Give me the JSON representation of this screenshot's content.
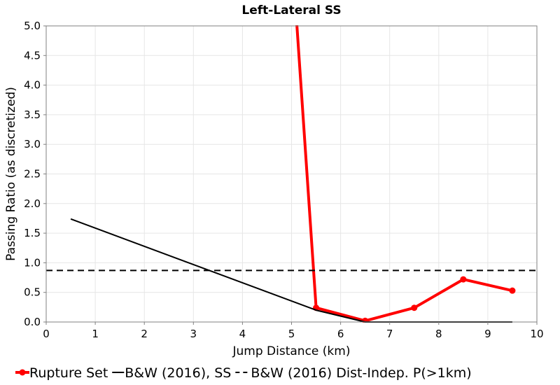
{
  "chart_data": {
    "type": "line",
    "title": "Left-Lateral SS",
    "xlabel": "Jump Distance (km)",
    "ylabel": "Passing Ratio (as discretized)",
    "xlim": [
      0,
      10
    ],
    "ylim": [
      0,
      5
    ],
    "xticks": [
      "0",
      "1",
      "2",
      "3",
      "4",
      "5",
      "6",
      "7",
      "8",
      "9",
      "10"
    ],
    "yticks": [
      "0.0",
      "0.5",
      "1.0",
      "1.5",
      "2.0",
      "2.5",
      "3.0",
      "3.5",
      "4.0",
      "4.5",
      "5.0"
    ],
    "grid": true,
    "legend_position": "bottom",
    "series": [
      {
        "name": "Rupture Set",
        "style": "solid-markers",
        "color": "#ff0000",
        "x": [
          5.5,
          6.5,
          7.5,
          8.5,
          9.5
        ],
        "y": [
          0.24,
          0.02,
          0.24,
          0.72,
          0.53
        ],
        "offscale_from": {
          "x": 5.1,
          "y": 5.0
        }
      },
      {
        "name": "B&W (2016), SS",
        "style": "solid",
        "color": "#000000",
        "x": [
          0.5,
          5.5,
          6.5,
          7.5,
          8.5,
          9.5
        ],
        "y": [
          1.74,
          0.2,
          0.0,
          0.0,
          0.0,
          0.0
        ]
      },
      {
        "name": "B&W (2016) Dist-Indep. P(>1km)",
        "style": "dashed",
        "color": "#000000",
        "x": [
          0,
          10
        ],
        "y": [
          0.87,
          0.87
        ]
      }
    ]
  }
}
